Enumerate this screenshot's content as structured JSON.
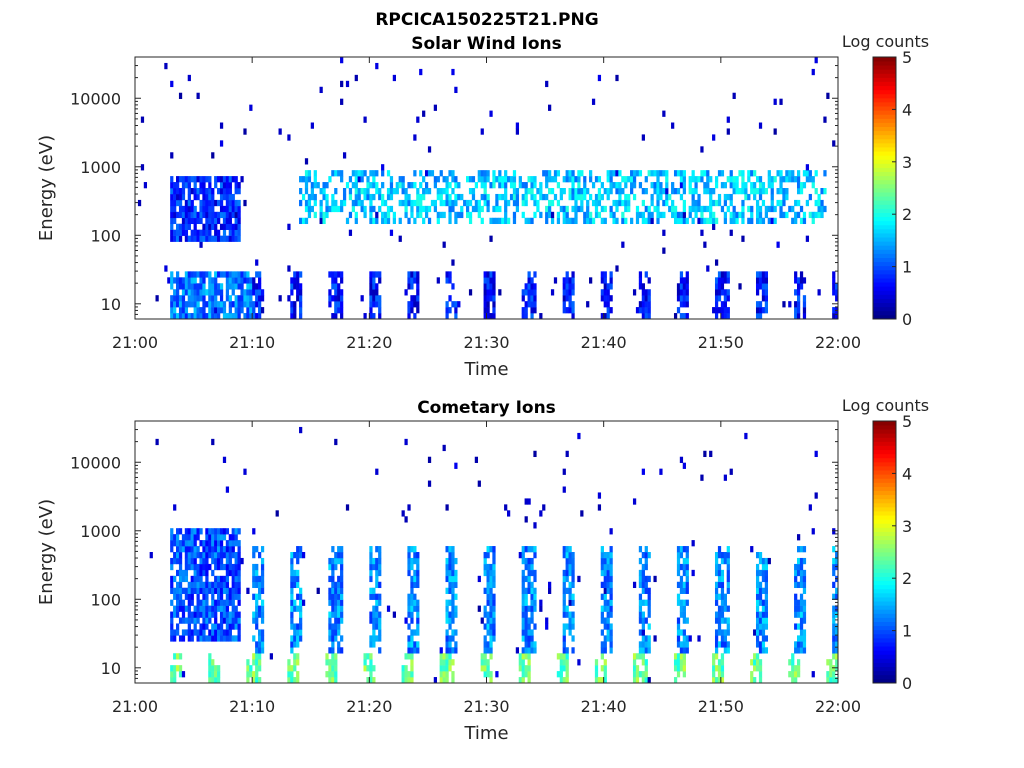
{
  "figure_title": "RPCICA150225T21.PNG",
  "chart_data": [
    {
      "type": "heatmap",
      "title": "Solar Wind Ions",
      "xlabel": "Time",
      "ylabel": "Energy (eV)",
      "x_ticks": [
        "21:00",
        "21:10",
        "21:20",
        "21:30",
        "21:40",
        "21:50",
        "22:00"
      ],
      "xlim": [
        "21:00",
        "22:00"
      ],
      "y_scale": "log",
      "y_ticks": [
        "10",
        "100",
        "1000",
        "10000"
      ],
      "ylim": [
        6,
        40000
      ],
      "colorbar": {
        "label": "Log counts",
        "ticks": [
          "0",
          "1",
          "2",
          "3",
          "4",
          "5"
        ],
        "range": [
          0,
          5
        ],
        "colormap": "jet"
      },
      "features": [
        {
          "time_start": "21:03",
          "time_end": "21:09",
          "energy_min": 80,
          "energy_max": 700,
          "log_counts": 0.8
        },
        {
          "time_start": "21:03",
          "time_end": "21:10",
          "energy_min": 6,
          "energy_max": 28,
          "log_counts": 1.2
        },
        {
          "time_start": "21:14",
          "time_end": "21:59",
          "energy_min": 150,
          "energy_max": 900,
          "log_counts": 1.6,
          "note": "dispersed band"
        },
        {
          "time_start": "21:10",
          "time_end": "22:00",
          "energy_min": 6,
          "energy_max": 28,
          "log_counts": 0.7,
          "note": "periodic bursts ~3 min"
        }
      ]
    },
    {
      "type": "heatmap",
      "title": "Cometary Ions",
      "xlabel": "Time",
      "ylabel": "Energy (eV)",
      "x_ticks": [
        "21:00",
        "21:10",
        "21:20",
        "21:30",
        "21:40",
        "21:50",
        "22:00"
      ],
      "xlim": [
        "21:00",
        "22:00"
      ],
      "y_scale": "log",
      "y_ticks": [
        "10",
        "100",
        "1000",
        "10000"
      ],
      "ylim": [
        6,
        40000
      ],
      "colorbar": {
        "label": "Log counts",
        "ticks": [
          "0",
          "1",
          "2",
          "3",
          "4",
          "5"
        ],
        "range": [
          0,
          5
        ],
        "colormap": "jet"
      },
      "features": [
        {
          "time_start": "21:03",
          "time_end": "21:09",
          "energy_min": 25,
          "energy_max": 1100,
          "log_counts": 1.0
        },
        {
          "time_start": "21:03",
          "time_end": "22:00",
          "energy_min": 6,
          "energy_max": 15,
          "log_counts": 2.4,
          "note": "periodic bursts ~3 min"
        },
        {
          "time_start": "21:10",
          "time_end": "22:00",
          "energy_min": 15,
          "energy_max": 600,
          "log_counts": 1.3,
          "note": "periodic dispersed columns"
        }
      ]
    }
  ]
}
